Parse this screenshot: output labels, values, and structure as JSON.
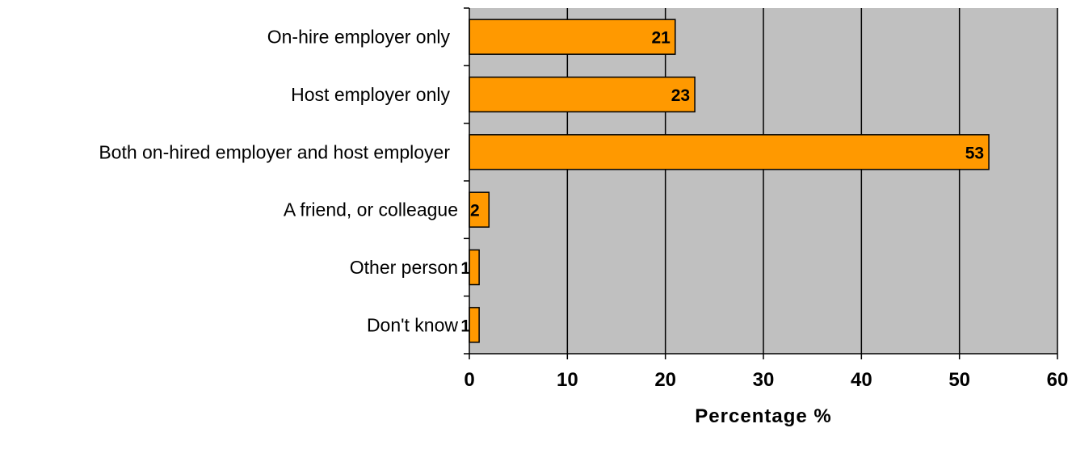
{
  "chart_data": {
    "type": "bar",
    "orientation": "horizontal",
    "categories": [
      "On-hire employer only",
      "Host employer only",
      "Both on-hired employer and host employer",
      "A friend, or colleague",
      "Other person",
      "Don't know"
    ],
    "values": [
      21,
      23,
      53,
      2,
      1,
      1
    ],
    "data_labels": [
      "21",
      "23",
      "53",
      "2",
      "1",
      "1"
    ],
    "xlabel": "Percentage %",
    "ylabel": "",
    "xlim": [
      0,
      60
    ],
    "xticks": [
      0,
      10,
      20,
      30,
      40,
      50,
      60
    ],
    "xtick_labels": [
      "0",
      "10",
      "20",
      "30",
      "40",
      "50",
      "60"
    ],
    "grid": "vertical",
    "legend": "none",
    "colors": {
      "bar_fill": "#FF9900",
      "bar_stroke": "#000000",
      "plot_background": "#C0C0C0",
      "gridline": "#000000"
    }
  }
}
